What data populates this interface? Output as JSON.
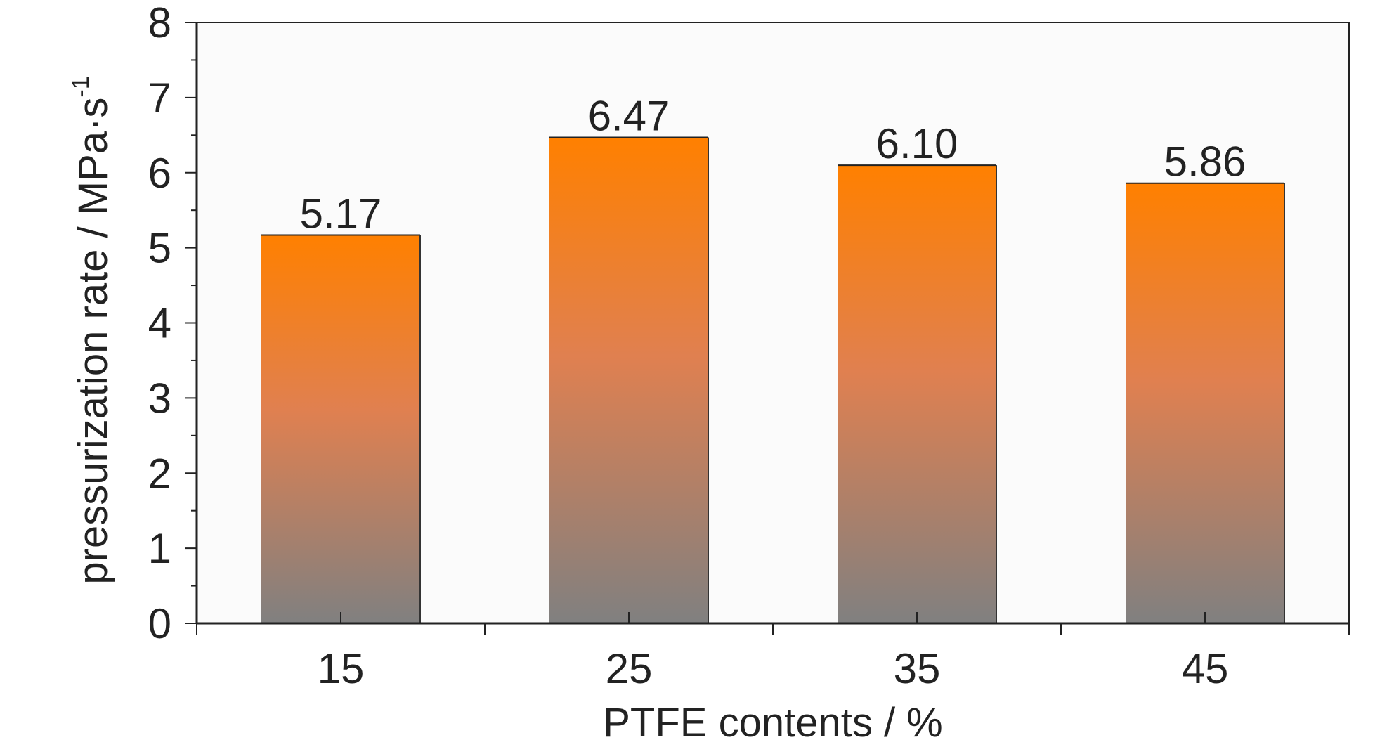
{
  "chart_data": {
    "type": "bar",
    "categories": [
      "15",
      "25",
      "35",
      "45"
    ],
    "values": [
      5.17,
      6.47,
      6.1,
      5.86
    ],
    "data_labels": [
      "5.17",
      "6.47",
      "6.10",
      "5.86"
    ],
    "xlabel": "PTFE contents / %",
    "ylabel": "pressurization rate / MPa·s",
    "ylabel_superscript": "-1",
    "ylim": [
      0,
      8
    ],
    "yticks": [
      "0",
      "1",
      "2",
      "3",
      "4",
      "5",
      "6",
      "7",
      "8"
    ],
    "grid": false,
    "colors": {
      "bar_top": "#ff8000",
      "bar_mid": "#e08050",
      "bar_bottom": "#808080",
      "axis": "#222222"
    }
  }
}
